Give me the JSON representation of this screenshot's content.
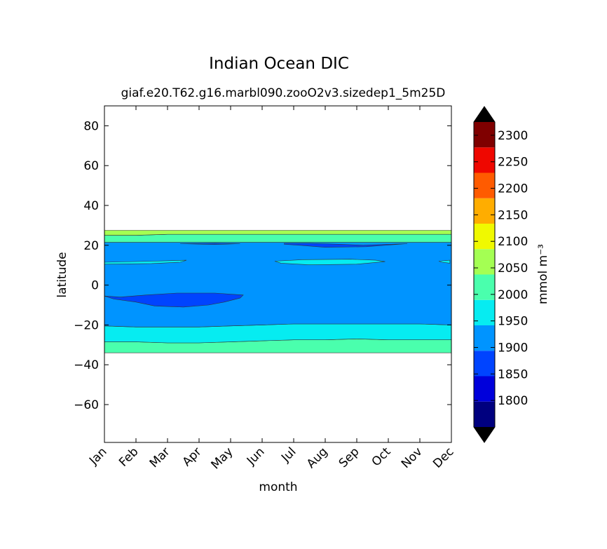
{
  "chart_data": {
    "type": "contourf",
    "title": "Indian Ocean DIC",
    "subtitle": "giaf.e20.T62.g16.marbl090.zooO2v3.sizedep1_5m25D",
    "xlabel": "month",
    "ylabel": "latitude",
    "x_categories": [
      "Jan",
      "Feb",
      "Mar",
      "Apr",
      "May",
      "Jun",
      "Jul",
      "Aug",
      "Sep",
      "Oct",
      "Nov",
      "Dec"
    ],
    "y_ticks": [
      "80",
      "60",
      "40",
      "20",
      "0",
      "−20",
      "−40",
      "−60"
    ],
    "y_tick_values": [
      80,
      60,
      40,
      20,
      0,
      -20,
      -40,
      -60
    ],
    "ylim": [
      -79,
      90
    ],
    "colorbar": {
      "label": "mmol m⁻³",
      "tick_labels": [
        "2300",
        "2250",
        "2200",
        "2150",
        "2100",
        "2050",
        "2000",
        "1950",
        "1900",
        "1850",
        "1800"
      ],
      "levels": [
        1750,
        1775,
        1800,
        1825,
        1850,
        1875,
        1900,
        1925,
        1950,
        1975,
        2000,
        2025,
        2050,
        2075,
        2100,
        2125,
        2150,
        2175,
        2200,
        2225,
        2250,
        2275,
        2300,
        2325
      ],
      "band_colors": [
        "#00007f",
        "#0000db",
        "#0044ff",
        "#0094ff",
        "#06ecf1",
        "#4affad",
        "#a4ff53",
        "#f0f900",
        "#ffad00",
        "#ff5b00",
        "#ef0700",
        "#7f0000"
      ],
      "extend": "both",
      "under_color": "#000000",
      "over_color": "#000000"
    },
    "fields": [
      {
        "name": "band-2025-2050",
        "color": "#4affad",
        "lat_top": [
          -28.5,
          -28.5,
          -29,
          -29,
          -28.5,
          -28,
          -27.5,
          -27.5,
          -27,
          -27.5,
          -27.5,
          -27.5
        ],
        "lat_bottom": [
          -34,
          -34,
          -34,
          -34,
          -34,
          -34,
          -34,
          -34,
          -34,
          -34,
          -34,
          -34
        ]
      },
      {
        "name": "band-1950-1975-south",
        "color": "#06ecf1",
        "lat_top": [
          -20.5,
          -21,
          -21,
          -21,
          -20.5,
          -20,
          -19.5,
          -19.5,
          -19.5,
          -19.5,
          -19.5,
          -20
        ],
        "lat_bottom": [
          -28.5,
          -28.5,
          -29,
          -29,
          -28.5,
          -28,
          -27.5,
          -27.5,
          -27,
          -27.5,
          -27.5,
          -27.5
        ]
      },
      {
        "name": "band-1900-1925",
        "color": "#0094ff",
        "lat_top": [
          21.5,
          21.5,
          21.5,
          21.5,
          21.5,
          21.5,
          21.5,
          21.5,
          21.5,
          21.5,
          21.5,
          21.5
        ],
        "lat_bottom": [
          -20.5,
          -21,
          -21,
          -21,
          -20.5,
          -20,
          -19.5,
          -19.5,
          -19.5,
          -19.5,
          -19.5,
          -20
        ]
      },
      {
        "name": "band-2025-2050-north",
        "color": "#4affad",
        "lat_top": [
          25,
          25,
          25.5,
          25.5,
          25.5,
          25.5,
          25.5,
          25.5,
          25.5,
          25.5,
          25.5,
          25.5
        ],
        "lat_bottom": [
          21.5,
          21.5,
          21.5,
          21.5,
          21.5,
          21.5,
          21.5,
          21.5,
          21.5,
          21.5,
          21.5,
          21.5
        ]
      },
      {
        "name": "band-2050-2075-north",
        "color": "#a4ff53",
        "lat_top": [
          27.5,
          27.5,
          27.5,
          27.5,
          27.5,
          27.5,
          27.5,
          27.5,
          27.5,
          27.5,
          27.5,
          27.5
        ],
        "lat_bottom": [
          25,
          25,
          25.5,
          25.5,
          25.5,
          25.5,
          25.5,
          25.5,
          25.5,
          25.5,
          25.5,
          25.5
        ]
      }
    ],
    "patches": [
      {
        "name": "low-dic-patch-south",
        "color": "#0044ff",
        "points": [
          [
            -0.1,
            -5.5
          ],
          [
            0.5,
            -6
          ],
          [
            1.3,
            -5
          ],
          [
            2.3,
            -4
          ],
          [
            3.5,
            -4
          ],
          [
            4.4,
            -5
          ],
          [
            4.3,
            -6.5
          ],
          [
            3.8,
            -8.5
          ],
          [
            3.3,
            -10
          ],
          [
            2.5,
            -11
          ],
          [
            1.6,
            -10.5
          ],
          [
            1.0,
            -8.5
          ],
          [
            0.3,
            -7
          ]
        ]
      },
      {
        "name": "low-dic-patch-north",
        "color": "#0044ff",
        "points": [
          [
            5.7,
            21
          ],
          [
            6.5,
            21
          ],
          [
            7.5,
            20.5
          ],
          [
            8.2,
            20
          ],
          [
            9,
            20.5
          ],
          [
            9.6,
            20.8
          ],
          [
            8.3,
            19.3
          ],
          [
            7.0,
            19
          ],
          [
            6.2,
            20
          ],
          [
            5.7,
            20.5
          ]
        ]
      },
      {
        "name": "high-dic-patch-1",
        "color": "#06ecf1",
        "points": [
          [
            0,
            11.5
          ],
          [
            1.5,
            12
          ],
          [
            2.6,
            12.5
          ],
          [
            2.4,
            11.5
          ],
          [
            1.5,
            10.8
          ],
          [
            0,
            10.5
          ]
        ]
      },
      {
        "name": "high-dic-patch-2",
        "color": "#06ecf1",
        "points": [
          [
            5.4,
            12
          ],
          [
            6.3,
            12.8
          ],
          [
            7.8,
            13
          ],
          [
            8.6,
            12.5
          ],
          [
            8.9,
            11.8
          ],
          [
            8.0,
            10.5
          ],
          [
            6.5,
            10.2
          ],
          [
            5.6,
            11
          ]
        ]
      },
      {
        "name": "high-dic-patch-3",
        "color": "#06ecf1",
        "points": [
          [
            10.6,
            12
          ],
          [
            10.95,
            12.5
          ],
          [
            10.95,
            11
          ],
          [
            10.7,
            11.5
          ]
        ]
      },
      {
        "name": "low-dic-patch-small",
        "color": "#0044ff",
        "points": [
          [
            2.4,
            20.8
          ],
          [
            3.5,
            21
          ],
          [
            4.3,
            20.8
          ],
          [
            3.5,
            20.4
          ]
        ]
      }
    ]
  }
}
